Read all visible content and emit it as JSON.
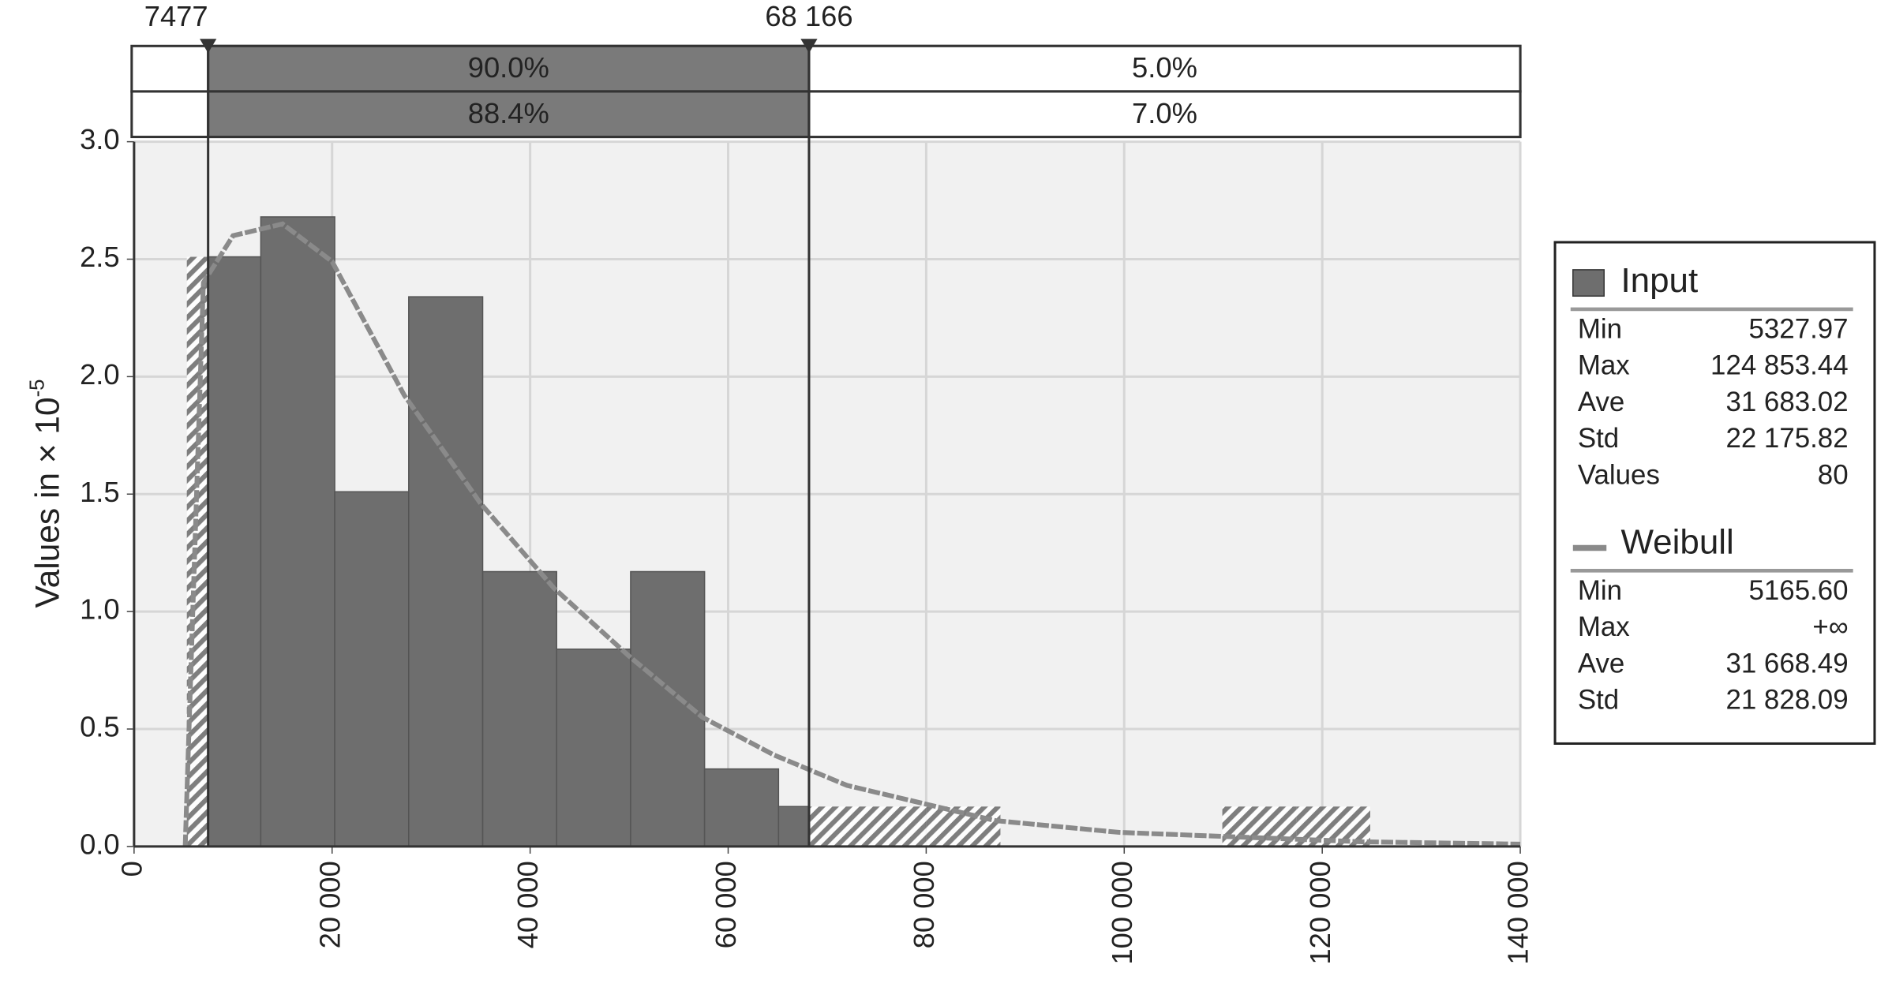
{
  "chart_data": {
    "type": "histogram",
    "ylabel": "Values in × 10",
    "ylabel_exponent": "-5",
    "bins": [
      5328,
      12798,
      20268,
      27738,
      35208,
      42678,
      50148,
      57618,
      65088,
      72558,
      80028,
      87498,
      94968,
      102438,
      109908,
      117378,
      124848
    ],
    "series": [
      {
        "name": "Input",
        "color": "#6e6e6e",
        "values": [
          2.51,
          2.68,
          1.51,
          2.34,
          1.17,
          0.84,
          1.17,
          0.33,
          0.17,
          0.17,
          0.17,
          0,
          0,
          0,
          0.17,
          0.17
        ]
      },
      {
        "name": "Weibull",
        "color": "#8a8a8a",
        "x": [
          5166,
          7000,
          10000,
          15000,
          20000,
          27300,
          35000,
          42400,
          50000,
          57400,
          64600,
          72000,
          87000,
          99500,
          124000,
          140000
        ],
        "values": [
          0,
          2.4,
          2.6,
          2.65,
          2.49,
          1.92,
          1.46,
          1.1,
          0.81,
          0.55,
          0.39,
          0.26,
          0.11,
          0.06,
          0.02,
          0.01
        ]
      }
    ],
    "delimiters": [
      7477,
      {
        "value": 68166,
        "label": "68 166"
      }
    ],
    "bands": [
      {
        "values": [
          90.0,
          5.0
        ],
        "value_labels": [
          "90.0%",
          "5.0%"
        ]
      },
      {
        "values": [
          88.4,
          7.0
        ],
        "value_labels": [
          "88.4%",
          "7.0%"
        ]
      }
    ],
    "xlim": [
      0,
      140000
    ],
    "xticks": [
      0,
      {
        "value": 20000,
        "label": "20 000"
      },
      {
        "value": 40000,
        "label": "40 000"
      },
      {
        "value": 60000,
        "label": "60 000"
      },
      {
        "value": 80000,
        "label": "80 000"
      },
      {
        "value": 100000,
        "label": "100 000"
      },
      {
        "value": 120000,
        "label": "120 000"
      },
      {
        "value": 140000,
        "label": "140 000"
      }
    ],
    "ylim": [
      0,
      3.0
    ],
    "yticks": [
      {
        "value": 0,
        "label": "0.0"
      },
      0.5,
      {
        "value": 1,
        "label": "1.0"
      },
      1.5,
      {
        "value": 2,
        "label": "2.0"
      },
      2.5,
      {
        "value": 3,
        "label": "3.0"
      }
    ],
    "grid": true,
    "legend": [
      {
        "series": 0,
        "rows": [
          [
            "Min",
            "5327.97"
          ],
          [
            "Max",
            "124 853.44"
          ],
          [
            "Ave",
            "31 683.02"
          ],
          [
            "Std",
            "22 175.82"
          ],
          [
            "Values",
            "80"
          ]
        ]
      },
      {
        "series": 1,
        "rows": [
          [
            "Min",
            "5165.60"
          ],
          [
            "Max",
            "+∞"
          ],
          [
            "Ave",
            "31 668.49"
          ],
          [
            "Std",
            "21 828.09"
          ]
        ]
      }
    ]
  }
}
